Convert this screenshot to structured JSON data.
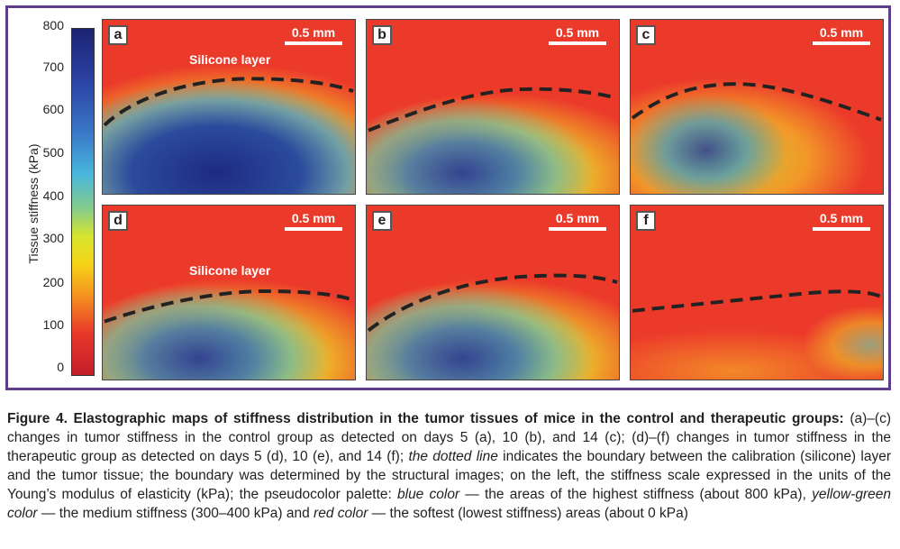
{
  "scale": {
    "title": "Tissue stiffness (kPa)",
    "ticks": [
      "800",
      "700",
      "600",
      "500",
      "400",
      "300",
      "200",
      "100",
      "0"
    ]
  },
  "panels": [
    {
      "letter": "a",
      "scale_label": "0.5 mm",
      "layer_label": "Silicone layer"
    },
    {
      "letter": "b",
      "scale_label": "0.5 mm",
      "layer_label": ""
    },
    {
      "letter": "c",
      "scale_label": "0.5 mm",
      "layer_label": ""
    },
    {
      "letter": "d",
      "scale_label": "0.5 mm",
      "layer_label": "Silicone layer"
    },
    {
      "letter": "e",
      "scale_label": "0.5 mm",
      "layer_label": ""
    },
    {
      "letter": "f",
      "scale_label": "0.5 mm",
      "layer_label": ""
    }
  ],
  "caption": {
    "title": "Figure 4. Elastographic maps of stiffness distribution in the tumor tissues of mice in the control and therapeutic groups:",
    "text1": " (a)–(c) changes in tumor stiffness in the control group as detected on days 5 (a), 10 (b), and 14 (c); (d)–(f) changes in tumor stiffness in the therapeutic group as detected on days 5 (d), 10 (e), and 14 (f); ",
    "dotted_line": "the dotted line",
    "text2": " indicates the boundary between the calibration (silicone) layer and the tumor tissue; the boundary was determined by the structural images; on the left, the stiffness scale expressed in the units of the Young’s modulus of elasticity (kPa); the pseudocolor palette: ",
    "blue": "blue color",
    "text3": " — the areas of the highest stiffness (about 800 kPa), ",
    "yellow": "yellow-green color",
    "text4": " — the medium stiffness (300–400 kPa) and ",
    "red": "red color",
    "text5": " — the softest (lowest stiffness) areas (about 0 kPa)"
  },
  "colors": {
    "frame": "#5e3f8c",
    "high_stiffness": "#1c2472",
    "medium_stiffness": "#d7e52e",
    "low_stiffness": "#ec3a2a"
  }
}
